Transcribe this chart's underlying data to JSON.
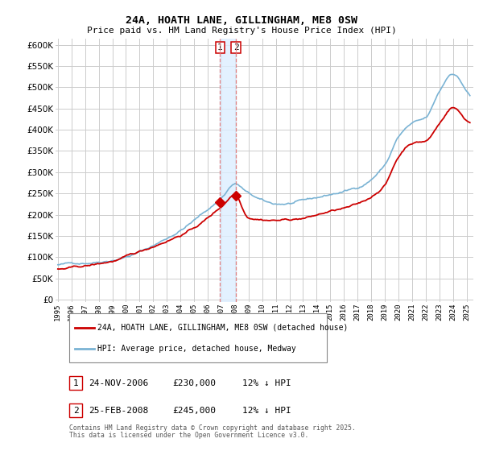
{
  "title": "24A, HOATH LANE, GILLINGHAM, ME8 0SW",
  "subtitle": "Price paid vs. HM Land Registry's House Price Index (HPI)",
  "yticks": [
    0,
    50000,
    100000,
    150000,
    200000,
    250000,
    300000,
    350000,
    400000,
    450000,
    500000,
    550000,
    600000
  ],
  "ylim": [
    -5000,
    615000
  ],
  "background_color": "#ffffff",
  "plot_bg_color": "#ffffff",
  "grid_color": "#cccccc",
  "hpi_color": "#7ab3d4",
  "price_color": "#cc0000",
  "vline_color": "#e08080",
  "vspan_color": "#ddeeff",
  "sale1_price": 230000,
  "sale2_price": 245000,
  "legend_label_price": "24A, HOATH LANE, GILLINGHAM, ME8 0SW (detached house)",
  "legend_label_hpi": "HPI: Average price, detached house, Medway",
  "table_row1": [
    "1",
    "24-NOV-2006",
    "£230,000",
    "12% ↓ HPI"
  ],
  "table_row2": [
    "2",
    "25-FEB-2008",
    "£245,000",
    "12% ↓ HPI"
  ],
  "footnote": "Contains HM Land Registry data © Crown copyright and database right 2025.\nThis data is licensed under the Open Government Licence v3.0.",
  "sale1_x": 143,
  "sale2_x": 157,
  "n_months": 364,
  "start_year": 1995,
  "end_year": 2025,
  "year_ticks": [
    0,
    12,
    24,
    36,
    48,
    60,
    72,
    84,
    96,
    108,
    120,
    132,
    144,
    156,
    168,
    180,
    192,
    204,
    216,
    228,
    240,
    252,
    264,
    276,
    288,
    300,
    312,
    324,
    336,
    348,
    360
  ],
  "year_labels": [
    "1995",
    "1996",
    "1997",
    "1998",
    "1999",
    "2000",
    "2001",
    "2002",
    "2003",
    "2004",
    "2005",
    "2006",
    "2007",
    "2008",
    "2009",
    "2010",
    "2011",
    "2012",
    "2013",
    "2014",
    "2015",
    "2016",
    "2017",
    "2018",
    "2019",
    "2020",
    "2021",
    "2022",
    "2023",
    "2024",
    "2025"
  ]
}
